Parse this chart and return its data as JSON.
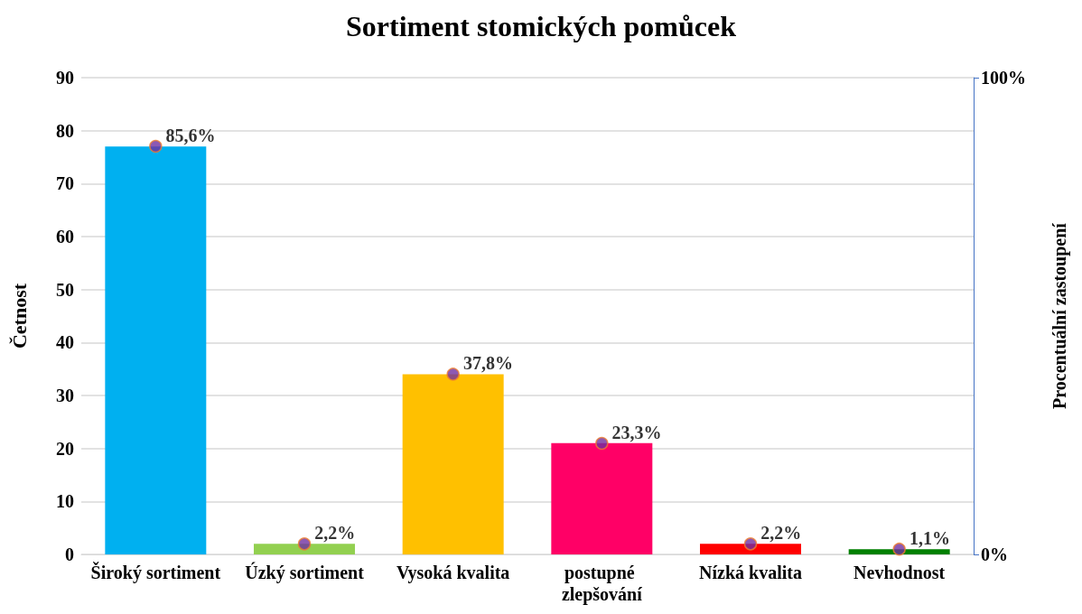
{
  "chart_data": {
    "type": "bar",
    "title": "Sortiment stomických pomůcek",
    "ylabel": "Četnost",
    "y2label": "Procentuální zastoupení",
    "categories": [
      "Široký sortiment",
      "Úzký sortiment",
      "Vysoká kvalita",
      "postupné zlepšování",
      "Nízká kvalita",
      "Nevhodnost"
    ],
    "series": [
      {
        "values": [
          77,
          2,
          34,
          21,
          2,
          1
        ],
        "colors": [
          "#00b0f0",
          "#92d050",
          "#ffc000",
          "#ff0066",
          "#ff0000",
          "#008000"
        ]
      },
      {
        "type": "scatter",
        "axis": "y2",
        "x": [
          "Široký sortiment",
          "Úzký sortiment",
          "Vysoká kvalita",
          "postupné zlepšování",
          "Nízká kvalita",
          "Nevhodnost"
        ],
        "values": [
          85.6,
          2.2,
          37.8,
          23.3,
          2.2,
          1.1
        ],
        "value_labels": [
          "85,6%",
          "2,2%",
          "37,8%",
          "23,3%",
          "2,2%",
          "1,1%"
        ],
        "color": "#7030a0",
        "marker": "circle"
      }
    ],
    "ylim": [
      0,
      90
    ],
    "yticks": [
      0,
      10,
      20,
      30,
      40,
      50,
      60,
      70,
      80,
      90
    ],
    "y2lim": [
      0,
      100
    ],
    "y2ticks": [
      {
        "value": 0,
        "label": "0%"
      },
      {
        "value": 100,
        "label": "100%"
      }
    ],
    "grid": "y"
  }
}
